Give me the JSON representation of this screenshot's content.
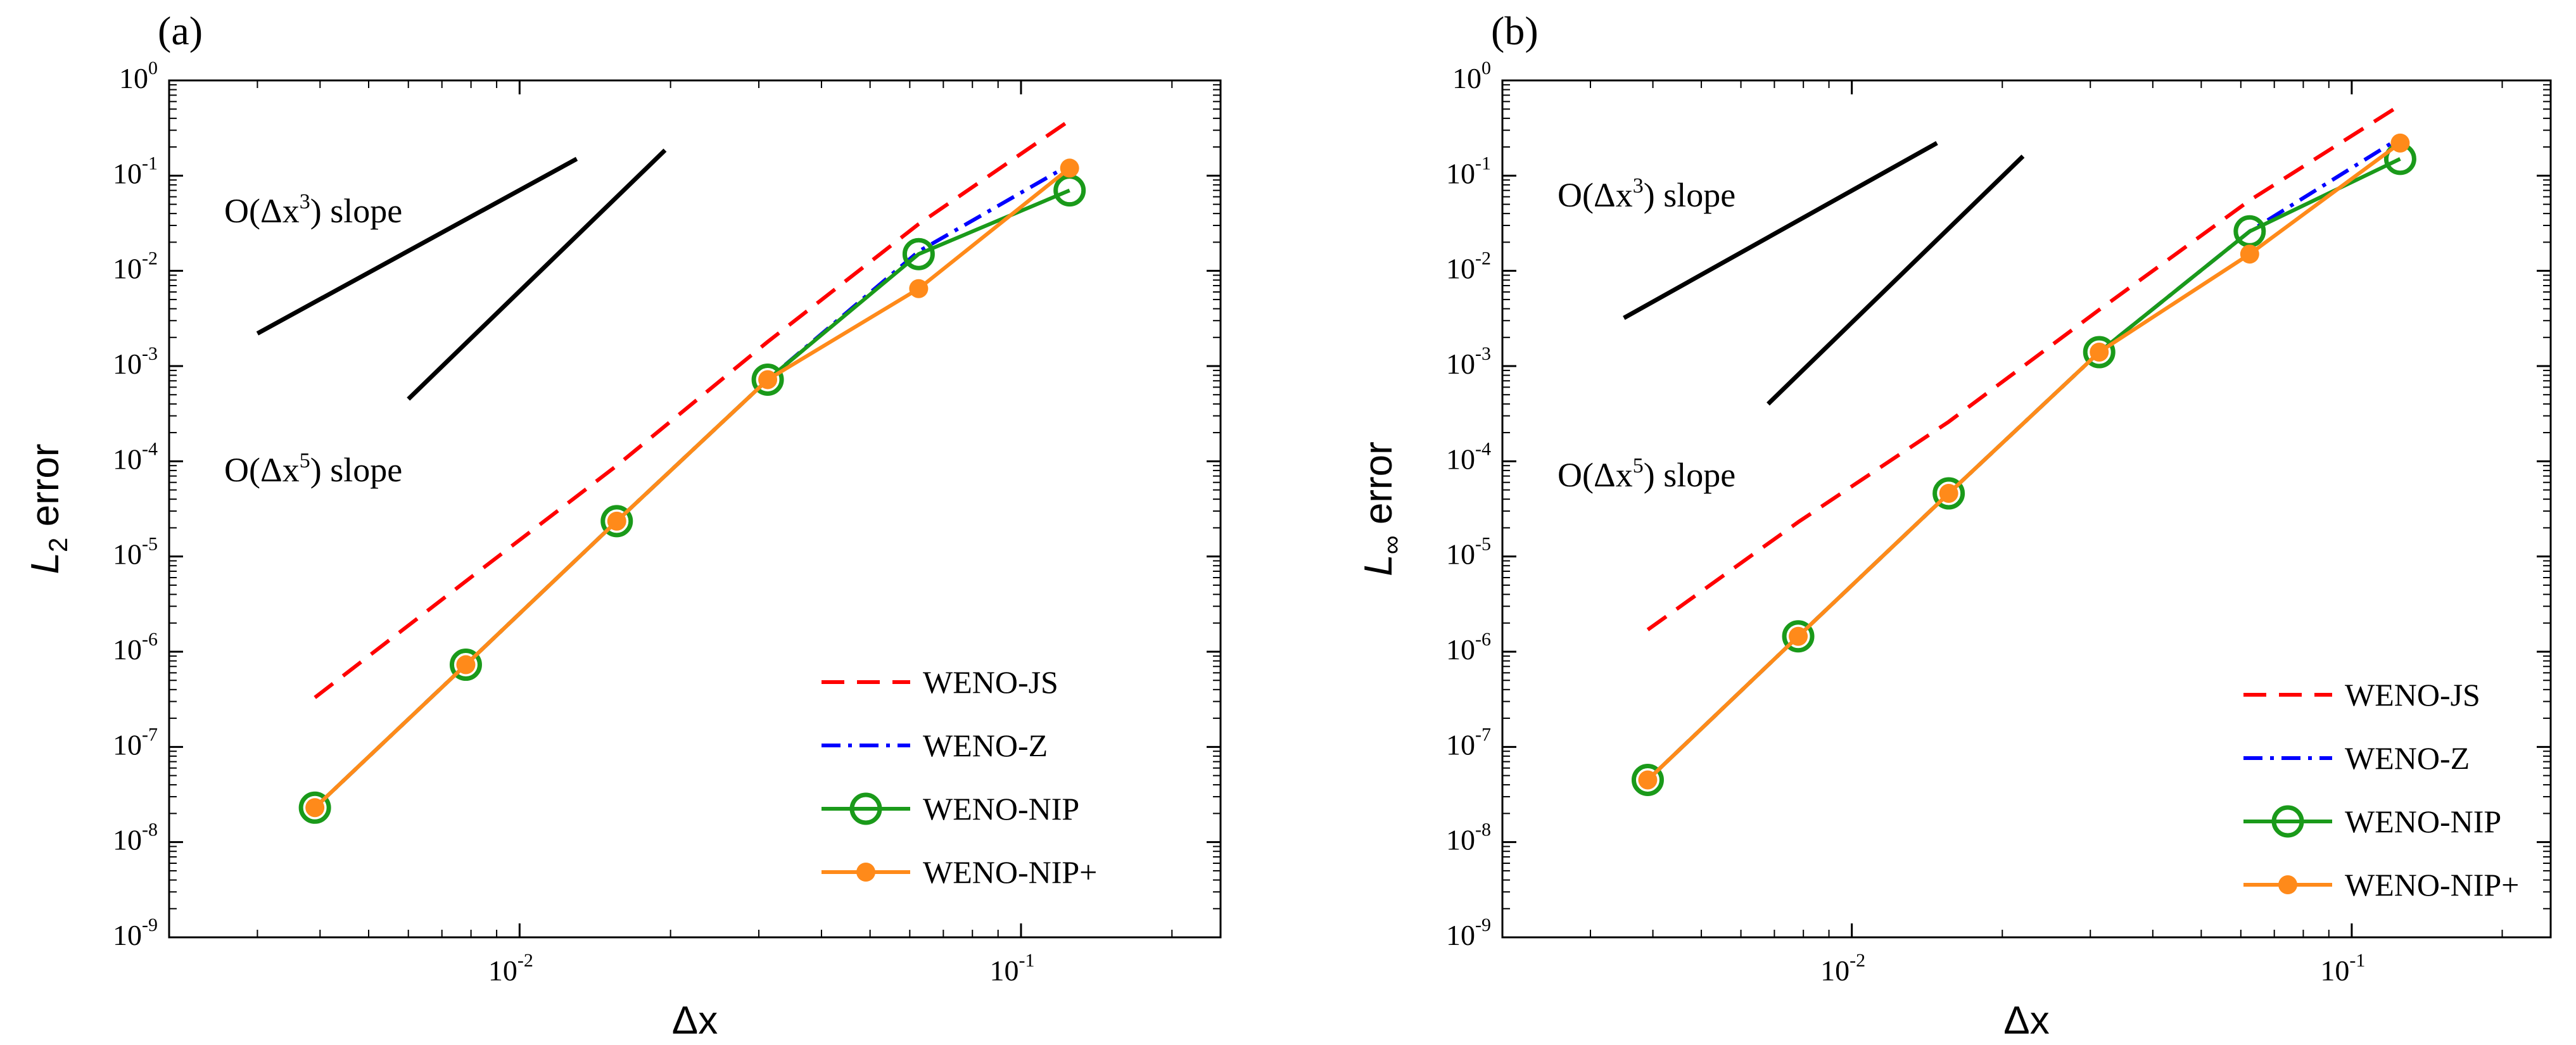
{
  "chart_data": [
    {
      "type": "line",
      "panel_label": "(a)",
      "ylabel_main": "L",
      "ylabel_sub": "2",
      "ylabel_rest": " error",
      "xlabel": "Δx",
      "xscale": "log",
      "yscale": "log",
      "xlim": [
        0.002,
        0.25
      ],
      "ylim": [
        1e-09,
        1
      ],
      "xtick_decades": [
        -2,
        -1
      ],
      "ytick_decades": [
        0,
        -1,
        -2,
        -3,
        -4,
        -5,
        -6,
        -7,
        -8,
        -9
      ],
      "legend_position": "bottom-right",
      "grid": false,
      "series": [
        {
          "name": "WENO-JS",
          "color": "#ff0000",
          "style": "dashed",
          "marker": "none",
          "x": [
            0.00390625,
            0.0078125,
            0.015625,
            0.03125,
            0.0625,
            0.125
          ],
          "y": [
            3.3e-07,
            5.5e-06,
            9e-05,
            0.0018,
            0.031,
            0.38
          ]
        },
        {
          "name": "WENO-Z",
          "color": "#0000ff",
          "style": "dashdot",
          "marker": "none",
          "x": [
            0.00390625,
            0.0078125,
            0.015625,
            0.03125,
            0.0625,
            0.125
          ],
          "y": [
            2.3e-08,
            7.3e-07,
            2.35e-05,
            0.00072,
            0.016,
            0.13
          ]
        },
        {
          "name": "WENO-NIP",
          "color": "#1a9a1a",
          "style": "solid",
          "marker": "open-circle",
          "x": [
            0.00390625,
            0.0078125,
            0.015625,
            0.03125,
            0.0625,
            0.125
          ],
          "y": [
            2.3e-08,
            7.3e-07,
            2.35e-05,
            0.00072,
            0.015,
            0.07
          ]
        },
        {
          "name": "WENO-NIP+",
          "color": "#ff8a1a",
          "style": "solid",
          "marker": "filled-circle",
          "x": [
            0.00390625,
            0.0078125,
            0.015625,
            0.03125,
            0.0625,
            0.125
          ],
          "y": [
            2.3e-08,
            7.3e-07,
            2.35e-05,
            0.00072,
            0.0065,
            0.12
          ]
        }
      ],
      "reference_slopes": [
        {
          "label_prefix": "O(Δx",
          "label_exp": "3",
          "label_suffix": ") slope",
          "x": [
            0.003,
            0.013
          ],
          "y": [
            0.0022,
            0.15
          ]
        },
        {
          "label_prefix": "O(Δx",
          "label_exp": "5",
          "label_suffix": ") slope",
          "x": [
            0.006,
            0.0195
          ],
          "y": [
            0.00045,
            0.185
          ]
        }
      ]
    },
    {
      "type": "line",
      "panel_label": "(b)",
      "ylabel_main": "L",
      "ylabel_sub": "∞",
      "ylabel_rest": " error",
      "xlabel": "Δx",
      "xscale": "log",
      "yscale": "log",
      "xlim": [
        0.002,
        0.25
      ],
      "ylim": [
        1e-09,
        1
      ],
      "xtick_decades": [
        -2,
        -1
      ],
      "ytick_decades": [
        0,
        -1,
        -2,
        -3,
        -4,
        -5,
        -6,
        -7,
        -8,
        -9
      ],
      "legend_position": "bottom-right",
      "grid": false,
      "series": [
        {
          "name": "WENO-JS",
          "color": "#ff0000",
          "style": "dashed",
          "marker": "none",
          "x": [
            0.00390625,
            0.0078125,
            0.015625,
            0.03125,
            0.0625,
            0.125
          ],
          "y": [
            1.7e-06,
            2.3e-05,
            0.00026,
            0.0039,
            0.055,
            0.55
          ]
        },
        {
          "name": "WENO-Z",
          "color": "#0000ff",
          "style": "dashdot",
          "marker": "none",
          "x": [
            0.00390625,
            0.0078125,
            0.015625,
            0.03125,
            0.0625,
            0.125
          ],
          "y": [
            4.5e-08,
            1.45e-06,
            4.6e-05,
            0.0014,
            0.026,
            0.25
          ]
        },
        {
          "name": "WENO-NIP",
          "color": "#1a9a1a",
          "style": "solid",
          "marker": "open-circle",
          "x": [
            0.00390625,
            0.0078125,
            0.015625,
            0.03125,
            0.0625,
            0.125
          ],
          "y": [
            4.5e-08,
            1.45e-06,
            4.6e-05,
            0.0014,
            0.026,
            0.15
          ]
        },
        {
          "name": "WENO-NIP+",
          "color": "#ff8a1a",
          "style": "solid",
          "marker": "filled-circle",
          "x": [
            0.00390625,
            0.0078125,
            0.015625,
            0.03125,
            0.0625,
            0.125
          ],
          "y": [
            4.5e-08,
            1.45e-06,
            4.6e-05,
            0.0014,
            0.015,
            0.22
          ]
        }
      ],
      "reference_slopes": [
        {
          "label_prefix": "O(Δx",
          "label_exp": "3",
          "label_suffix": ") slope",
          "x": [
            0.0035,
            0.0148
          ],
          "y": [
            0.0032,
            0.22
          ]
        },
        {
          "label_prefix": "O(Δx",
          "label_exp": "5",
          "label_suffix": ") slope",
          "x": [
            0.0068,
            0.022
          ],
          "y": [
            0.0004,
            0.16
          ]
        }
      ]
    }
  ]
}
